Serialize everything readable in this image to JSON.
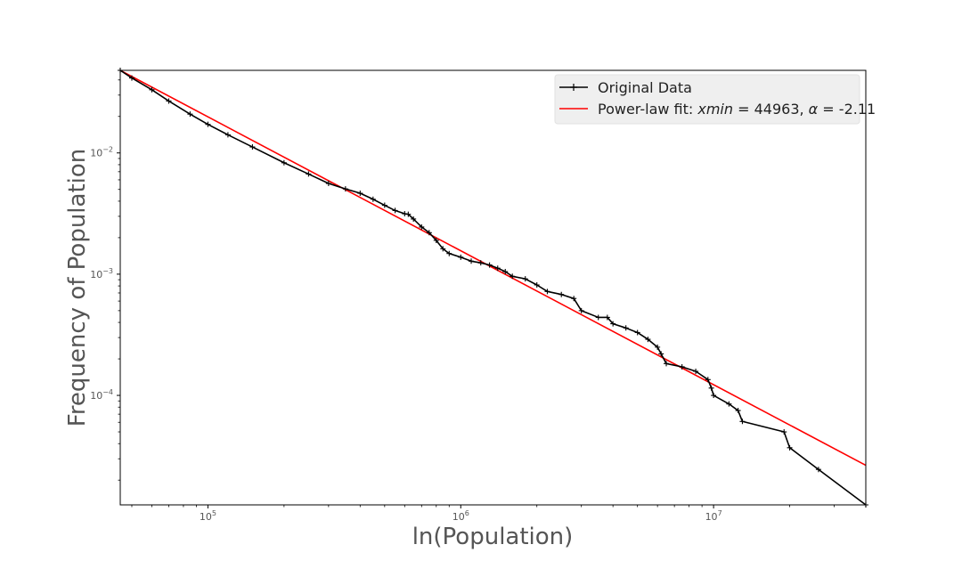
{
  "chart_data": {
    "type": "line",
    "xlabel": "ln(Population)",
    "ylabel": "Frequency of Population",
    "xscale": "log",
    "yscale": "log",
    "xlim": [
      45000,
      40000000
    ],
    "ylim": [
      1.25e-05,
      0.048
    ],
    "x_ticks": [
      {
        "value": 100000,
        "base": "10",
        "exp": "5"
      },
      {
        "value": 1000000,
        "base": "10",
        "exp": "6"
      },
      {
        "value": 10000000,
        "base": "10",
        "exp": "7"
      }
    ],
    "y_ticks": [
      {
        "value": 0.01,
        "base": "10",
        "exp": "−2"
      },
      {
        "value": 0.001,
        "base": "10",
        "exp": "−3"
      },
      {
        "value": 0.0001,
        "base": "10",
        "exp": "−4"
      }
    ],
    "grid": false,
    "legend_position": "top-right",
    "legend": {
      "data_label": "Original Data",
      "fit_prefix": "Power-law fit: ",
      "fit_xmin_var": "xmin",
      "fit_xmin_val": " = 44963, ",
      "fit_alpha_var": "α",
      "fit_alpha_val": " = -2.11"
    },
    "series": [
      {
        "name": "Original Data",
        "color": "#000000",
        "marker": "+",
        "x": [
          45000,
          50000,
          60000,
          70000,
          85000,
          100000,
          120000,
          150000,
          200000,
          250000,
          300000,
          350000,
          400000,
          450000,
          500000,
          550000,
          600000,
          620000,
          650000,
          700000,
          750000,
          800000,
          850000,
          900000,
          1000000,
          1100000,
          1200000,
          1300000,
          1400000,
          1500000,
          1600000,
          1800000,
          2000000,
          2200000,
          2500000,
          2800000,
          3000000,
          3500000,
          3800000,
          4000000,
          4500000,
          5000000,
          5500000,
          6000000,
          6200000,
          6500000,
          7500000,
          8500000,
          9500000,
          9800000,
          10000000,
          11500000,
          12500000,
          13000000,
          19000000,
          20000000,
          26000000,
          40000000
        ],
        "y": [
          0.048,
          0.0415,
          0.0332,
          0.0268,
          0.0209,
          0.0172,
          0.0141,
          0.0112,
          0.0083,
          0.0067,
          0.0056,
          0.00505,
          0.00465,
          0.00415,
          0.0037,
          0.00335,
          0.00315,
          0.00312,
          0.00285,
          0.00245,
          0.0022,
          0.0019,
          0.00162,
          0.00148,
          0.00138,
          0.00128,
          0.00124,
          0.00119,
          0.00112,
          0.00105,
          0.00096,
          0.000915,
          0.000815,
          0.00072,
          0.00068,
          0.00063,
          0.0005,
          0.00044,
          0.00044,
          0.00039,
          0.00036,
          0.00033,
          0.00029,
          0.00025,
          0.00022,
          0.000183,
          0.000172,
          0.000158,
          0.000135,
          0.000115,
          0.0001,
          8.5e-05,
          7.5e-05,
          6.1e-05,
          5e-05,
          3.7e-05,
          2.45e-05,
          1.25e-05
        ]
      },
      {
        "name": "Power-law fit",
        "color": "#ff0000",
        "x": [
          44963,
          40000000
        ],
        "y": [
          0.048,
          2.65e-05
        ]
      }
    ]
  }
}
